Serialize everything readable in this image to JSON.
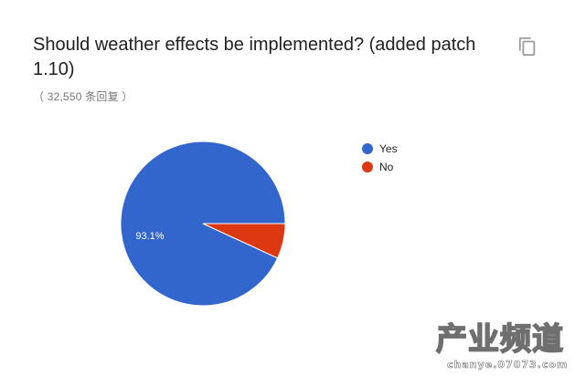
{
  "question": {
    "title": "Should weather effects be implemented? (added patch 1.10)",
    "response_count": "（ 32,550 条回复 ）"
  },
  "icons": {
    "copy": "copy-icon"
  },
  "chart_data": {
    "type": "pie",
    "title": "Should weather effects be implemented? (added patch 1.10)",
    "slices": [
      {
        "label": "Yes",
        "value": 93.1,
        "color": "#3366cc",
        "data_label": "93.1%"
      },
      {
        "label": "No",
        "value": 6.9,
        "color": "#dc3912",
        "data_label": ""
      }
    ],
    "legend_position": "right"
  },
  "watermark": {
    "main": "产业频道",
    "url": "chanye.07073.com"
  }
}
